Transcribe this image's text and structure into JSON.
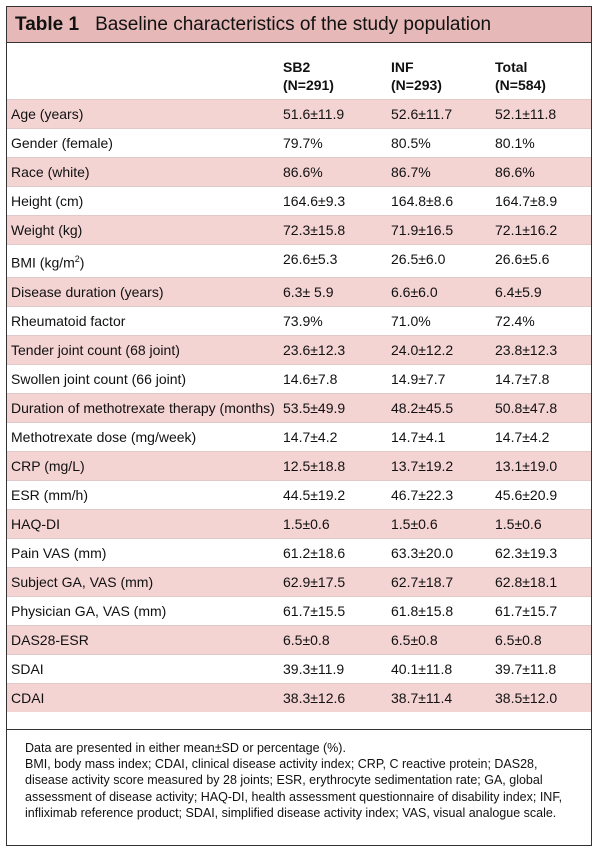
{
  "table": {
    "label": "Table 1",
    "title": "Baseline characteristics of the study population",
    "columns": [
      {
        "name": "SB2",
        "n": "(N=291)"
      },
      {
        "name": "INF",
        "n": "(N=293)"
      },
      {
        "name": "Total",
        "n": "(N=584)"
      }
    ],
    "rows": [
      {
        "label": "Age (years)",
        "values": [
          "51.6±11.9",
          "52.6±11.7",
          "52.1±11.8"
        ]
      },
      {
        "label": "Gender (female)",
        "values": [
          "79.7%",
          "80.5%",
          "80.1%"
        ]
      },
      {
        "label": "Race (white)",
        "values": [
          "86.6%",
          "86.7%",
          "86.6%"
        ]
      },
      {
        "label": "Height (cm)",
        "values": [
          "164.6±9.3",
          "164.8±8.6",
          "164.7±8.9"
        ]
      },
      {
        "label": "Weight (kg)",
        "values": [
          "72.3±15.8",
          "71.9±16.5",
          "72.1±16.2"
        ]
      },
      {
        "label": "BMI (kg/m",
        "label_sup": "2",
        "label_after": ")",
        "values": [
          "26.6±5.3",
          "26.5±6.0",
          "26.6±5.6"
        ]
      },
      {
        "label": "Disease duration (years)",
        "values": [
          "6.3± 5.9",
          "6.6±6.0",
          "6.4±5.9"
        ]
      },
      {
        "label": "Rheumatoid factor",
        "values": [
          "73.9%",
          "71.0%",
          "72.4%"
        ]
      },
      {
        "label": "Tender joint count (68 joint)",
        "values": [
          "23.6±12.3",
          "24.0±12.2",
          "23.8±12.3"
        ]
      },
      {
        "label": "Swollen joint count (66 joint)",
        "values": [
          "14.6±7.8",
          "14.9±7.7",
          "14.7±7.8"
        ]
      },
      {
        "label": "Duration of methotrexate therapy (months)",
        "values": [
          "53.5±49.9",
          "48.2±45.5",
          "50.8±47.8"
        ]
      },
      {
        "label": "Methotrexate dose (mg/week)",
        "values": [
          "14.7±4.2",
          "14.7±4.1",
          "14.7±4.2"
        ]
      },
      {
        "label": "CRP (mg/L)",
        "values": [
          "12.5±18.8",
          "13.7±19.2",
          "13.1±19.0"
        ]
      },
      {
        "label": "ESR (mm/h)",
        "values": [
          "44.5±19.2",
          "46.7±22.3",
          "45.6±20.9"
        ]
      },
      {
        "label": "HAQ-DI",
        "values": [
          "1.5±0.6",
          "1.5±0.6",
          "1.5±0.6"
        ]
      },
      {
        "label": "Pain VAS (mm)",
        "values": [
          "61.2±18.6",
          "63.3±20.0",
          "62.3±19.3"
        ]
      },
      {
        "label": "Subject GA, VAS (mm)",
        "values": [
          "62.9±17.5",
          "62.7±18.7",
          "62.8±18.1"
        ]
      },
      {
        "label": "Physician GA, VAS (mm)",
        "values": [
          "61.7±15.5",
          "61.8±15.8",
          "61.7±15.7"
        ]
      },
      {
        "label": "DAS28-ESR",
        "values": [
          "6.5±0.8",
          "6.5±0.8",
          "6.5±0.8"
        ]
      },
      {
        "label": "SDAI",
        "values": [
          "39.3±11.9",
          "40.1±11.8",
          "39.7±11.8"
        ]
      },
      {
        "label": "CDAI",
        "values": [
          "38.3±12.6",
          "38.7±11.4",
          "38.5±12.0"
        ]
      }
    ],
    "footnote": [
      "Data are presented in either mean±SD or percentage (%).",
      "BMI, body mass index; CDAI, clinical disease activity index; CRP, C reactive protein; DAS28, disease activity score measured by 28 joints; ESR, erythrocyte sedimentation rate; GA, global assessment of disease activity; HAQ-DI, health assessment questionnaire of disability index; INF, infliximab reference product; SDAI, simplified disease activity index; VAS, visual analogue scale."
    ]
  },
  "colors": {
    "title_bg": "#e6b8b8",
    "shaded_row_bg": "#f4d3d3",
    "border": "#333333"
  }
}
